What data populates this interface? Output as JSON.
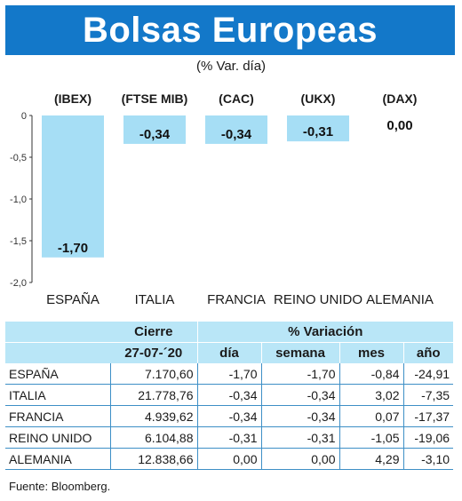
{
  "header": {
    "title": "Bolsas Europeas",
    "subtitle": "(% Var. día)"
  },
  "chart_data": {
    "type": "bar",
    "categories": [
      "ESPAÑA",
      "ITALIA",
      "FRANCIA",
      "REINO UNIDO",
      "ALEMANIA"
    ],
    "indices": [
      "(IBEX)",
      "(FTSE MIB)",
      "(CAC)",
      "(UKX)",
      "(DAX)"
    ],
    "values": [
      -1.7,
      -0.34,
      -0.34,
      -0.31,
      0.0
    ],
    "value_labels": [
      "-1,70",
      "-0,34",
      "-0,34",
      "-0,31",
      "0,00"
    ],
    "ylim": [
      -2.0,
      0
    ],
    "yticks": [
      0,
      -0.5,
      -1.0,
      -1.5,
      -2.0
    ],
    "ytick_labels": [
      "0",
      "-0,5",
      "-1,0",
      "-1,5",
      "-2,0"
    ],
    "bar_color": "#a6def5"
  },
  "table": {
    "group_headers": {
      "close": "Cierre",
      "variation": "% Variación"
    },
    "date": "27-07-´20",
    "columns": [
      "día",
      "semana",
      "mes",
      "año"
    ],
    "rows": [
      {
        "name": "ESPAÑA",
        "cierre": "7.170,60",
        "dia": "-1,70",
        "semana": "-1,70",
        "mes": "-0,84",
        "ano": "-24,91"
      },
      {
        "name": "ITALIA",
        "cierre": "21.778,76",
        "dia": "-0,34",
        "semana": "-0,34",
        "mes": "3,02",
        "ano": "-7,35"
      },
      {
        "name": "FRANCIA",
        "cierre": "4.939,62",
        "dia": "-0,34",
        "semana": "-0,34",
        "mes": "0,07",
        "ano": "-17,37"
      },
      {
        "name": "REINO UNIDO",
        "cierre": "6.104,88",
        "dia": "-0,31",
        "semana": "-0,31",
        "mes": "-1,05",
        "ano": "-19,06"
      },
      {
        "name": "ALEMANIA",
        "cierre": "12.838,66",
        "dia": "0,00",
        "semana": "0,00",
        "mes": "4,29",
        "ano": "-3,10"
      }
    ]
  },
  "source": "Fuente: Bloomberg.",
  "colors": {
    "banner": "#1378c9",
    "header_fill": "#b9e6f7",
    "grid_line": "#3d8fc6"
  }
}
